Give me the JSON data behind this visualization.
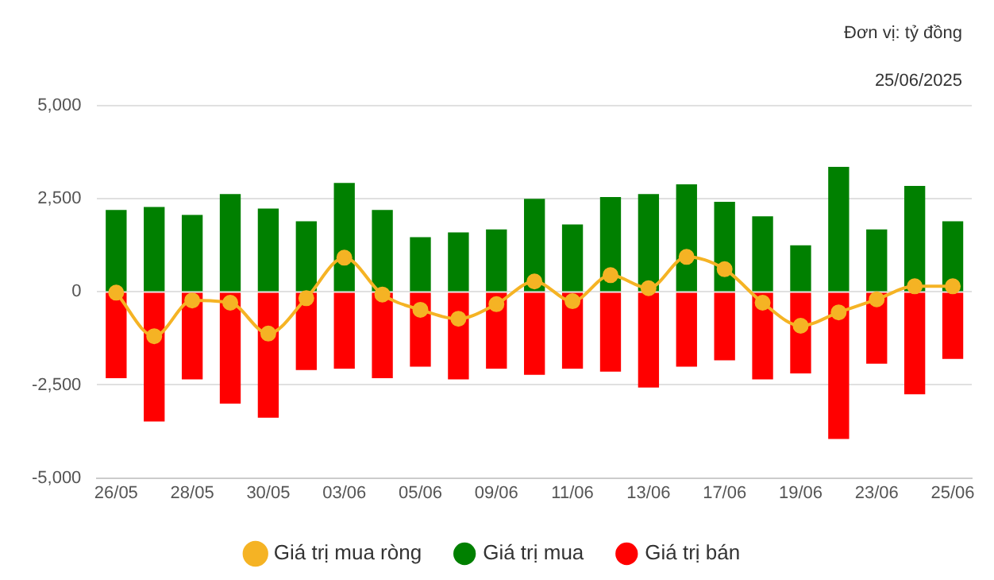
{
  "chart_data": {
    "type": "bar",
    "stacked": true,
    "annotations": [
      "Đơn vị: tỷ đồng",
      "25/06/2025"
    ],
    "categories": [
      "26/05",
      null,
      "28/05",
      null,
      "30/05",
      null,
      "03/06",
      null,
      "05/06",
      null,
      "09/06",
      null,
      "11/06",
      null,
      "13/06",
      null,
      "17/06",
      null,
      "19/06",
      null,
      "23/06",
      null,
      "25/06"
    ],
    "series": [
      {
        "name": "Giá trị mua",
        "color": "#008000",
        "values": [
          2200,
          2280,
          2070,
          2630,
          2240,
          1900,
          2930,
          2200,
          1470,
          1600,
          1680,
          2500,
          1810,
          2550,
          2630,
          2890,
          2420,
          2030,
          1250,
          3360,
          1680,
          2850,
          1900
        ]
      },
      {
        "name": "Giá trị bán",
        "color": "#ff0000",
        "values": [
          -2320,
          -3480,
          -2350,
          -3000,
          -3380,
          -2100,
          -2060,
          -2320,
          -2010,
          -2350,
          -2060,
          -2230,
          -2060,
          -2140,
          -2570,
          -2010,
          -1840,
          -2350,
          -2190,
          -3950,
          -1930,
          -2750,
          -1800
        ]
      },
      {
        "name": "Giá trị mua ròng",
        "type": "line",
        "color": "#f5b324",
        "values": [
          -20,
          -1190,
          -230,
          -290,
          -1120,
          -170,
          920,
          -70,
          -480,
          -720,
          -330,
          280,
          -250,
          450,
          100,
          940,
          610,
          -290,
          -910,
          -550,
          -200,
          150,
          150
        ]
      }
    ],
    "ylim": [
      -5000,
      5000
    ],
    "yticks": [
      {
        "value": -5000,
        "label": "-5,000"
      },
      {
        "value": -2500,
        "label": "-2,500"
      },
      {
        "value": 0,
        "label": "0"
      },
      {
        "value": 2500,
        "label": "2,500"
      },
      {
        "value": 5000,
        "label": "5,000"
      }
    ],
    "grid": "y",
    "legend": "bottom",
    "marker": "circle"
  }
}
